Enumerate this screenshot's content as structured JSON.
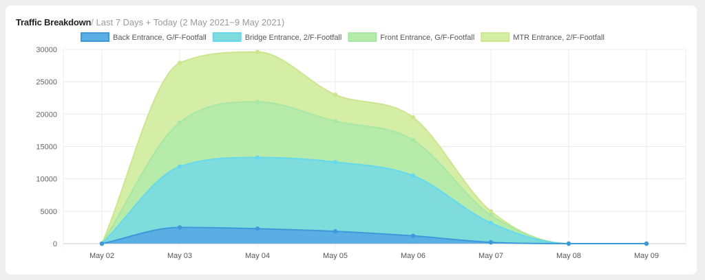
{
  "card": {
    "title": "Traffic Breakdown",
    "subtitle": "/ Last 7 Days + Today (2 May 2021~9 May 2021)"
  },
  "chart_data": {
    "type": "area",
    "stacked": true,
    "categories": [
      "May 02",
      "May 03",
      "May 04",
      "May 05",
      "May 06",
      "May 07",
      "May 08",
      "May 09"
    ],
    "ylim": [
      0,
      30000
    ],
    "yticks": [
      0,
      5000,
      10000,
      15000,
      20000,
      25000,
      30000
    ],
    "grid": true,
    "legend_position": "top",
    "series": [
      {
        "name": "Back Entrance, G/F-Footfall",
        "fill": "#5aaee4",
        "stroke": "#3c98d8",
        "values": [
          0,
          2500,
          2300,
          1900,
          1200,
          200,
          0,
          0
        ]
      },
      {
        "name": "Bridge Entrance, 2/F-Footfall",
        "fill": "#7edcdc",
        "stroke": "#66d8ee",
        "values": [
          0,
          9400,
          11000,
          10700,
          9300,
          3000,
          0,
          0
        ]
      },
      {
        "name": "Front Entrance, G/F-Footfall",
        "fill": "#b6ebaa",
        "stroke": "#a8e6a6",
        "values": [
          0,
          6800,
          8600,
          6300,
          5500,
          1200,
          0,
          0
        ]
      },
      {
        "name": "MTR Entrance, 2/F-Footfall",
        "fill": "#d5eea6",
        "stroke": "#cde58e",
        "values": [
          0,
          9200,
          7700,
          4100,
          3500,
          600,
          0,
          0
        ]
      }
    ]
  }
}
